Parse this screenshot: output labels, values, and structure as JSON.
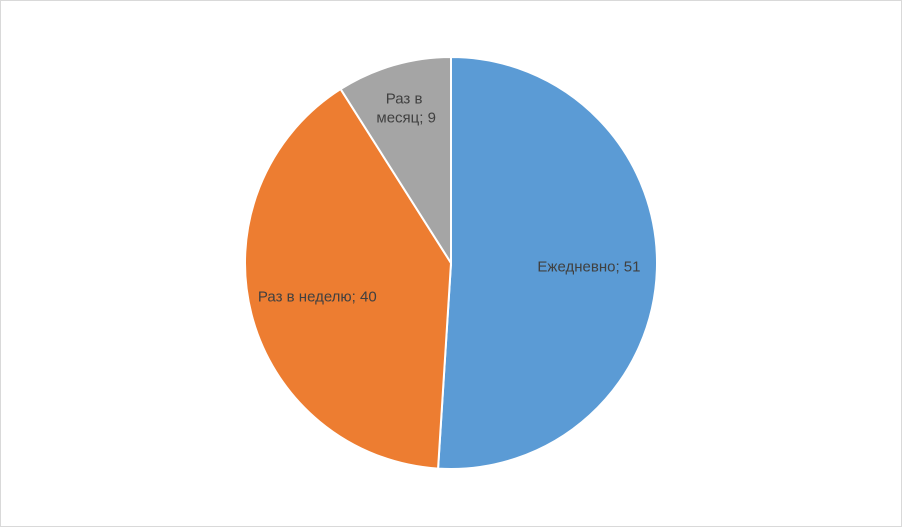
{
  "chart_data": {
    "type": "pie",
    "values": [
      51,
      40,
      9
    ],
    "value_labels": [
      "Ежедневно; 51",
      "Раз в неделю; 40",
      "Раз в месяц; 9"
    ],
    "colors": [
      "#5b9bd5",
      "#ed7d31",
      "#a5a5a5"
    ]
  }
}
